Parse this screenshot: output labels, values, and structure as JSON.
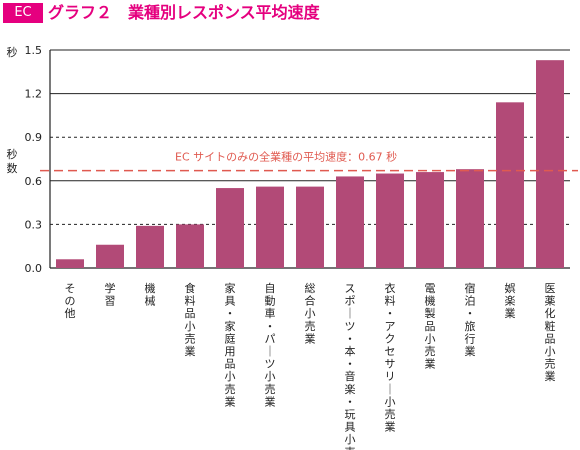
{
  "header": {
    "badge": "EC",
    "title": "グラフ２　業種別レスポンス平均速度"
  },
  "colors": {
    "bar": "#b24a77",
    "accent": "#e5007f",
    "average_line": "#e05a50"
  },
  "chart_data": {
    "type": "bar",
    "title": "グラフ２　業種別レスポンス平均速度",
    "ylabel_unit_top": "秒",
    "ylabel_mid": "秒数",
    "xlabel": "",
    "ylim": [
      0,
      1.5
    ],
    "yticks": [
      "0.0",
      "0.3",
      "0.6",
      "0.9",
      "1.2",
      "1.5"
    ],
    "categories": [
      "その他",
      "学習",
      "機械",
      "食料品小売業",
      "家具・家庭用品小売業",
      "自動車・パーツ小売業",
      "総合小売業",
      "スポーツ・本・音楽・玩具小売業",
      "衣料・アクセサリー小売業",
      "電機製品小売業",
      "宿泊・旅行業",
      "娯楽業",
      "医薬化粧品小売業"
    ],
    "values": [
      0.06,
      0.16,
      0.29,
      0.3,
      0.55,
      0.56,
      0.56,
      0.63,
      0.65,
      0.66,
      0.68,
      1.14,
      1.43
    ],
    "average": {
      "value": 0.67,
      "label": "EC サイトのみの全業種の平均速度：0.67 秒"
    },
    "grid": "solid at 0.3-multiples of 0.6 step, dashed at others"
  }
}
